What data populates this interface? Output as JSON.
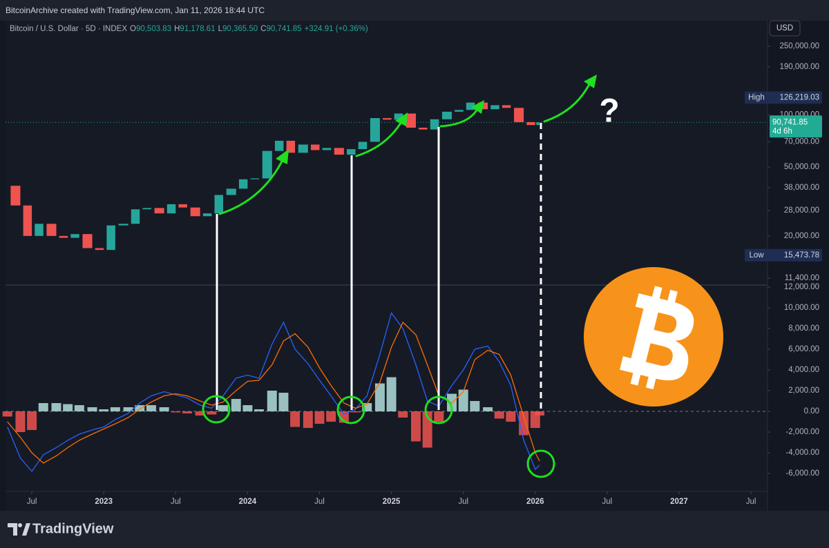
{
  "header": {
    "credit": "BitcoinArchive created with TradingView.com, Jan 11, 2026 18:44 UTC"
  },
  "legend": {
    "symbol": "Bitcoin / U.S. Dollar · 5D · INDEX",
    "o_label": "O",
    "o": "90,503.83",
    "h_label": "H",
    "h": "91,178.61",
    "l_label": "L",
    "l": "90,365.50",
    "c_label": "C",
    "c": "90,741.85",
    "change": "+324.91 (+0.36%)"
  },
  "currency": "USD",
  "annotation": "?",
  "footer": {
    "brand": "TradingView"
  },
  "chart_data": [
    {
      "type": "candlestick",
      "log_scale": true,
      "up_color": "#26a69a",
      "down_color": "#ef5350",
      "x": [
        2022.33,
        2022.42,
        2022.5,
        2022.58,
        2022.67,
        2022.75,
        2022.83,
        2022.92,
        2023.0,
        2023.08,
        2023.17,
        2023.25,
        2023.33,
        2023.42,
        2023.5,
        2023.58,
        2023.67,
        2023.75,
        2023.83,
        2023.92,
        2024.0,
        2024.08,
        2024.17,
        2024.25,
        2024.33,
        2024.42,
        2024.5,
        2024.58,
        2024.67,
        2024.75,
        2024.83,
        2024.92,
        2025.0,
        2025.08,
        2025.17,
        2025.25,
        2025.33,
        2025.42,
        2025.5,
        2025.58,
        2025.67,
        2025.75,
        2025.83,
        2025.92,
        2026.0,
        2026.03
      ],
      "values": [
        39000,
        30000,
        20000,
        23500,
        20000,
        19500,
        20500,
        17000,
        16600,
        23000,
        23500,
        28500,
        29000,
        27000,
        30500,
        29200,
        26000,
        27000,
        34500,
        37500,
        42500,
        43000,
        62000,
        71000,
        60500,
        67500,
        62700,
        64500,
        59000,
        63500,
        70000,
        96000,
        94000,
        102000,
        84500,
        82500,
        94500,
        104500,
        107000,
        118000,
        108000,
        114000,
        110000,
        91000,
        87500,
        90741.85
      ],
      "xlim": [
        2022.317,
        2027.615
      ],
      "ylim": [
        10400,
        351000
      ],
      "yticks": [
        {
          "value": 250000,
          "label": "250,000.00"
        },
        {
          "value": 190000,
          "label": "190,000.00"
        },
        {
          "value": 100000,
          "label": "100,000.00"
        },
        {
          "value": 70000,
          "label": "70,000.00"
        },
        {
          "value": 50000,
          "label": "50,000.00"
        },
        {
          "value": 38000,
          "label": "38,000.00"
        },
        {
          "value": 28000,
          "label": "28,000.00"
        },
        {
          "value": 20000,
          "label": "20,000.00"
        },
        {
          "value": 11400,
          "label": "11,400.00"
        }
      ],
      "high_label": "High",
      "high": {
        "value": 126219.03,
        "label": "126,219.03"
      },
      "low_label": "Low",
      "low": {
        "value": 15473.78,
        "label": "15,473.78"
      },
      "last": {
        "value": 90741.85,
        "label": "90,741.85"
      },
      "last_color": "#22ab94",
      "countdown": "4d 6h"
    },
    {
      "type": "line",
      "zero_line": true,
      "x": [
        2022.33,
        2022.42,
        2022.5,
        2022.58,
        2022.67,
        2022.75,
        2022.83,
        2022.92,
        2023.0,
        2023.08,
        2023.17,
        2023.25,
        2023.33,
        2023.42,
        2023.5,
        2023.58,
        2023.67,
        2023.75,
        2023.83,
        2023.92,
        2024.0,
        2024.08,
        2024.17,
        2024.25,
        2024.33,
        2024.42,
        2024.5,
        2024.58,
        2024.67,
        2024.75,
        2024.83,
        2024.92,
        2025.0,
        2025.08,
        2025.17,
        2025.25,
        2025.33,
        2025.42,
        2025.5,
        2025.58,
        2025.67,
        2025.75,
        2025.83,
        2025.92,
        2026.0,
        2026.03
      ],
      "series": [
        {
          "style": "histogram",
          "up_color": "#b2dfdb",
          "down_color": "#ef5350",
          "values": [
            -500,
            -2000,
            -1800,
            800,
            800,
            700,
            600,
            400,
            200,
            400,
            400,
            600,
            600,
            400,
            -100,
            -200,
            -400,
            -300,
            600,
            1200,
            600,
            200,
            2000,
            1800,
            -1500,
            -1600,
            -1200,
            -1000,
            -1100,
            -100,
            800,
            2700,
            3300,
            -600,
            -2900,
            -3500,
            -1000,
            1700,
            2100,
            1000,
            400,
            -700,
            -1000,
            -2300,
            -1600,
            -400
          ]
        },
        {
          "style": "line",
          "color": "#2962ff",
          "values": [
            -1500,
            -4500,
            -5800,
            -4200,
            -3500,
            -2800,
            -2200,
            -1800,
            -1500,
            -800,
            -200,
            800,
            1500,
            1900,
            1600,
            1300,
            600,
            300,
            1500,
            3200,
            3500,
            3200,
            6500,
            8600,
            6000,
            4600,
            3000,
            1500,
            -300,
            200,
            1500,
            5500,
            9500,
            8000,
            4500,
            1000,
            500,
            2500,
            4000,
            6000,
            6300,
            4800,
            2500,
            -2800,
            -5600,
            -5200
          ]
        },
        {
          "style": "line",
          "color": "#ff6d00",
          "values": [
            -1000,
            -2500,
            -4000,
            -5000,
            -4300,
            -3500,
            -2800,
            -2200,
            -1700,
            -1200,
            -600,
            200,
            900,
            1500,
            1700,
            1500,
            1000,
            600,
            900,
            2000,
            2900,
            3000,
            4500,
            6800,
            7500,
            6200,
            4200,
            2500,
            800,
            300,
            700,
            2800,
            6200,
            8600,
            7400,
            4500,
            1500,
            800,
            1900,
            5000,
            5900,
            5500,
            3500,
            -500,
            -4000,
            -4800
          ]
        }
      ],
      "xlim": [
        2022.317,
        2027.615
      ],
      "ylim": [
        -7730,
        12200
      ],
      "yticks": [
        {
          "value": 12000,
          "label": "12,000.00"
        },
        {
          "value": 10000,
          "label": "10,000.00"
        },
        {
          "value": 8000,
          "label": "8,000.00"
        },
        {
          "value": 6000,
          "label": "6,000.00"
        },
        {
          "value": 4000,
          "label": "4,000.00"
        },
        {
          "value": 2000,
          "label": "2,000.00"
        },
        {
          "value": 0,
          "label": "0.00"
        },
        {
          "value": -2000,
          "label": "-2,000.00"
        },
        {
          "value": -4000,
          "label": "-4,000.00"
        },
        {
          "value": -6000,
          "label": "-6,000.00"
        }
      ],
      "xticks": [
        {
          "value": 2022.5,
          "label": "Jul"
        },
        2023,
        {
          "value": 2023.5,
          "label": "Jul"
        },
        2024,
        {
          "value": 2024.5,
          "label": "Jul"
        },
        2025,
        {
          "value": 2025.5,
          "label": "Jul"
        },
        2026,
        {
          "value": 2026.5,
          "label": "Jul"
        },
        2027,
        {
          "value": 2027.5,
          "label": "Jul"
        }
      ]
    }
  ]
}
